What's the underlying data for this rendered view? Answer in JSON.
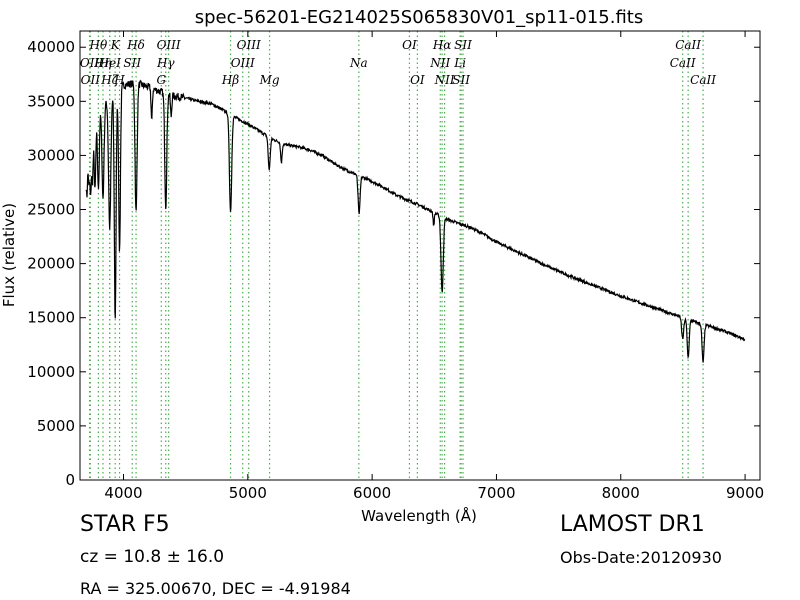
{
  "chart_data": {
    "type": "line",
    "title": "spec-56201-EG214025S065830V01_sp11-015.fits",
    "xlabel": "Wavelength (Å)",
    "ylabel": "Flux (relative)",
    "xlim": [
      3650,
      9120
    ],
    "ylim": [
      0,
      41500
    ],
    "x_ticks": [
      4000,
      5000,
      6000,
      7000,
      8000,
      9000
    ],
    "y_ticks": [
      0,
      5000,
      10000,
      15000,
      20000,
      25000,
      30000,
      35000,
      40000
    ],
    "grid": false,
    "line_color": "#000000",
    "marker_color": "#4caf50",
    "continuum": [
      [
        3700,
        30000
      ],
      [
        3800,
        34000
      ],
      [
        3900,
        35500
      ],
      [
        4000,
        36500
      ],
      [
        4100,
        36700
      ],
      [
        4200,
        36300
      ],
      [
        4300,
        35900
      ],
      [
        4400,
        35500
      ],
      [
        4500,
        35300
      ],
      [
        4600,
        35000
      ],
      [
        4700,
        34800
      ],
      [
        4800,
        34200
      ],
      [
        4900,
        33500
      ],
      [
        5000,
        32900
      ],
      [
        5100,
        32200
      ],
      [
        5200,
        31500
      ],
      [
        5300,
        31000
      ],
      [
        5400,
        30800
      ],
      [
        5500,
        30500
      ],
      [
        5600,
        30000
      ],
      [
        5700,
        29200
      ],
      [
        5800,
        28600
      ],
      [
        5900,
        28100
      ],
      [
        6000,
        27600
      ],
      [
        6100,
        27000
      ],
      [
        6200,
        26300
      ],
      [
        6300,
        25800
      ],
      [
        6400,
        25300
      ],
      [
        6500,
        24700
      ],
      [
        6600,
        24100
      ],
      [
        6700,
        23700
      ],
      [
        6800,
        23300
      ],
      [
        6900,
        22700
      ],
      [
        7000,
        22000
      ],
      [
        7200,
        20900
      ],
      [
        7400,
        19800
      ],
      [
        7600,
        18800
      ],
      [
        7800,
        17900
      ],
      [
        8000,
        17000
      ],
      [
        8200,
        16200
      ],
      [
        8400,
        15400
      ],
      [
        8600,
        14600
      ],
      [
        8800,
        13900
      ],
      [
        9000,
        13000
      ]
    ],
    "absorption": [
      [
        3705,
        4000,
        6
      ],
      [
        3722,
        3500,
        5
      ],
      [
        3735,
        5000,
        5
      ],
      [
        3750,
        4500,
        6
      ],
      [
        3771,
        6000,
        6
      ],
      [
        3798,
        7000,
        7
      ],
      [
        3835,
        8500,
        8
      ],
      [
        3889,
        12000,
        9
      ],
      [
        3933,
        21000,
        7
      ],
      [
        3968,
        15000,
        7
      ],
      [
        4101,
        12000,
        8
      ],
      [
        4227,
        3000,
        5
      ],
      [
        4340,
        10500,
        8
      ],
      [
        4383,
        2000,
        5
      ],
      [
        4861,
        9000,
        9
      ],
      [
        5172,
        3000,
        8
      ],
      [
        5270,
        1800,
        6
      ],
      [
        5895,
        3500,
        8
      ],
      [
        6495,
        1200,
        5
      ],
      [
        6563,
        7000,
        9
      ],
      [
        8498,
        2000,
        8
      ],
      [
        8542,
        3500,
        8
      ],
      [
        8662,
        3500,
        8
      ]
    ],
    "lines": [
      {
        "label": "OII",
        "x": 3727,
        "row": 1
      },
      {
        "label": "OII",
        "x": 3733,
        "row": 2
      },
      {
        "label": "Hθ",
        "x": 3798,
        "row": 0
      },
      {
        "label": "Hη",
        "x": 3835,
        "row": 1
      },
      {
        "label": "Hζ",
        "x": 3889,
        "row": 2
      },
      {
        "label": "HeI",
        "x": 3889,
        "row": 1
      },
      {
        "label": "K",
        "x": 3933,
        "row": 0
      },
      {
        "label": "H",
        "x": 3968,
        "row": 2
      },
      {
        "label": "SII",
        "x": 4070,
        "row": 1
      },
      {
        "label": "Hδ",
        "x": 4101,
        "row": 0
      },
      {
        "label": "OIII",
        "x": 4363,
        "row": 0
      },
      {
        "label": "Hγ",
        "x": 4340,
        "row": 1
      },
      {
        "label": "G",
        "x": 4304,
        "row": 2
      },
      {
        "label": "Hβ",
        "x": 4861,
        "row": 2
      },
      {
        "label": "OIII",
        "x": 4959,
        "row": 1
      },
      {
        "label": "OIII",
        "x": 5007,
        "row": 0
      },
      {
        "label": "Mg",
        "x": 5175,
        "row": 2
      },
      {
        "label": "Na",
        "x": 5893,
        "row": 1
      },
      {
        "label": "OI",
        "x": 6300,
        "row": 0
      },
      {
        "label": "OI",
        "x": 6364,
        "row": 2
      },
      {
        "label": "NII",
        "x": 6548,
        "row": 1
      },
      {
        "label": "Hα",
        "x": 6563,
        "row": 0
      },
      {
        "label": "NII",
        "x": 6583,
        "row": 2
      },
      {
        "label": "Li",
        "x": 6708,
        "row": 1
      },
      {
        "label": "SII",
        "x": 6716,
        "row": 2
      },
      {
        "label": "SII",
        "x": 6731,
        "row": 0
      },
      {
        "label": "CaII",
        "x": 8498,
        "row": 1
      },
      {
        "label": "CaII",
        "x": 8542,
        "row": 0
      },
      {
        "label": "CaII",
        "x": 8662,
        "row": 2
      }
    ]
  },
  "info": {
    "class": "STAR   F5",
    "survey": "LAMOST DR1",
    "cz": "cz = 10.8 ± 16.0",
    "obs_date": "Obs-Date:20120930",
    "radec": "RA = 325.00670, DEC = -4.91984"
  }
}
